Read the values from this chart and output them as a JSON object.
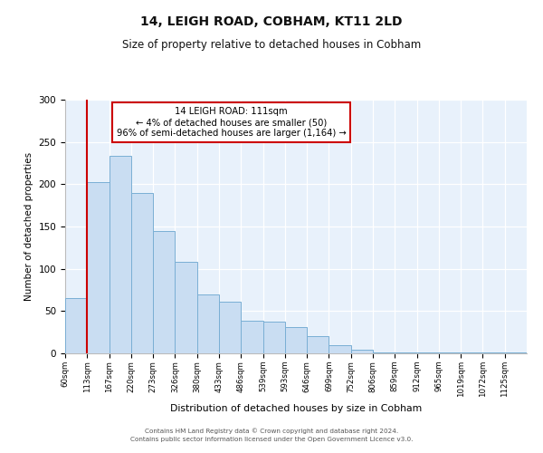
{
  "title": "14, LEIGH ROAD, COBHAM, KT11 2LD",
  "subtitle": "Size of property relative to detached houses in Cobham",
  "xlabel": "Distribution of detached houses by size in Cobham",
  "ylabel": "Number of detached properties",
  "bin_labels": [
    "60sqm",
    "113sqm",
    "167sqm",
    "220sqm",
    "273sqm",
    "326sqm",
    "380sqm",
    "433sqm",
    "486sqm",
    "539sqm",
    "593sqm",
    "646sqm",
    "699sqm",
    "752sqm",
    "806sqm",
    "859sqm",
    "912sqm",
    "965sqm",
    "1019sqm",
    "1072sqm",
    "1125sqm"
  ],
  "bar_values": [
    65,
    203,
    234,
    190,
    145,
    108,
    70,
    61,
    39,
    37,
    31,
    20,
    10,
    4,
    1,
    1,
    1,
    1,
    1,
    1,
    1
  ],
  "bar_color": "#c9ddf2",
  "bar_edge_color": "#7aafd4",
  "line_color": "#cc0000",
  "annotation_box_edge_color": "#cc0000",
  "annotation_box_face_color": "#ffffff",
  "annotation_title": "14 LEIGH ROAD: 111sqm",
  "annotation_line1": "← 4% of detached houses are smaller (50)",
  "annotation_line2": "96% of semi-detached houses are larger (1,164) →",
  "ylim": [
    0,
    300
  ],
  "yticks": [
    0,
    50,
    100,
    150,
    200,
    250,
    300
  ],
  "background_color": "#e8f1fb",
  "footer1": "Contains HM Land Registry data © Crown copyright and database right 2024.",
  "footer2": "Contains public sector information licensed under the Open Government Licence v3.0."
}
